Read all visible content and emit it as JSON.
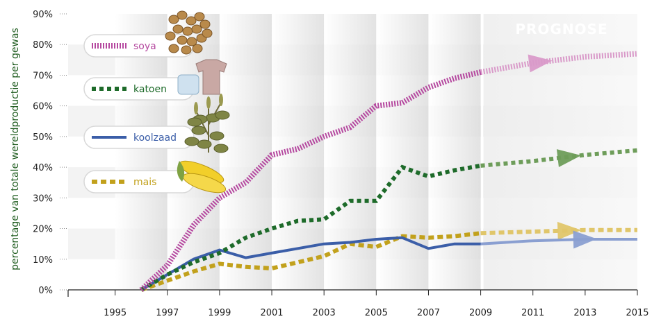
{
  "chart_data": {
    "type": "line",
    "ylabel": "percentage van totale wereldproductie per gewas",
    "xlim": [
      1993.2,
      2015
    ],
    "ylim": [
      0,
      90
    ],
    "x_ticks": [
      "1995",
      "1997",
      "1999",
      "2001",
      "2003",
      "2005",
      "2007",
      "2009",
      "2011",
      "2013",
      "2015"
    ],
    "y_ticks": [
      "0%",
      "10%",
      "20%",
      "30%",
      "40%",
      "50%",
      "60%",
      "70%",
      "80%",
      "90%"
    ],
    "forecast_label": "PROGNOSE",
    "forecast_start": 2009,
    "series": [
      {
        "name": "soya",
        "color": "#b5489f",
        "forecast_color": "#d99ac9",
        "style": "soya",
        "icon": "soybeans-icon",
        "x": [
          1996,
          1997,
          1998,
          1999,
          2000,
          2001,
          2002,
          2003,
          2004,
          2005,
          2006,
          2007,
          2008,
          2009
        ],
        "y": [
          0,
          8,
          21,
          30,
          35,
          44,
          46,
          50,
          53,
          60,
          61,
          66,
          69,
          71
        ],
        "forecast_x": [
          2009,
          2011,
          2013,
          2015
        ],
        "forecast_y": [
          71,
          74,
          76,
          77
        ]
      },
      {
        "name": "katoen",
        "color": "#1e6b2a",
        "forecast_color": "#6e9d5a",
        "style": "katoen",
        "icon": "cotton-shirt-icon",
        "x": [
          1996,
          1997,
          1998,
          1999,
          2000,
          2001,
          2002,
          2003,
          2004,
          2005,
          2006,
          2007,
          2008,
          2009
        ],
        "y": [
          0,
          5,
          9,
          12,
          17,
          20,
          22.5,
          23,
          29,
          29,
          40,
          37,
          39,
          40.5
        ],
        "forecast_x": [
          2009,
          2011,
          2013,
          2015
        ],
        "forecast_y": [
          40.5,
          42,
          44,
          45.5
        ]
      },
      {
        "name": "koolzaad",
        "color": "#3b5ea8",
        "forecast_color": "#8a9fd1",
        "style": "koolzaad",
        "icon": "rapeseed-plant-icon",
        "x": [
          1996,
          1997,
          1998,
          1999,
          2000,
          2001,
          2002,
          2003,
          2004,
          2005,
          2006,
          2007,
          2008,
          2009
        ],
        "y": [
          0,
          5,
          10,
          13,
          10.5,
          12,
          13.5,
          15,
          15.5,
          16.5,
          17,
          13.5,
          15,
          15
        ],
        "forecast_x": [
          2009,
          2011,
          2013,
          2015
        ],
        "forecast_y": [
          15,
          16,
          16.5,
          16.5
        ]
      },
      {
        "name": "mais",
        "color": "#c2a11c",
        "forecast_color": "#e0c66a",
        "style": "mais",
        "icon": "corn-cobs-icon",
        "x": [
          1996,
          1997,
          1998,
          1999,
          2000,
          2001,
          2002,
          2003,
          2004,
          2005,
          2006,
          2007,
          2008,
          2009
        ],
        "y": [
          0,
          3,
          6,
          8.5,
          7.5,
          7,
          9,
          11,
          15,
          14,
          17.5,
          17,
          17.5,
          18.5
        ],
        "forecast_x": [
          2009,
          2011,
          2013,
          2015
        ],
        "forecast_y": [
          18.5,
          19,
          19.5,
          19.5
        ]
      }
    ]
  }
}
